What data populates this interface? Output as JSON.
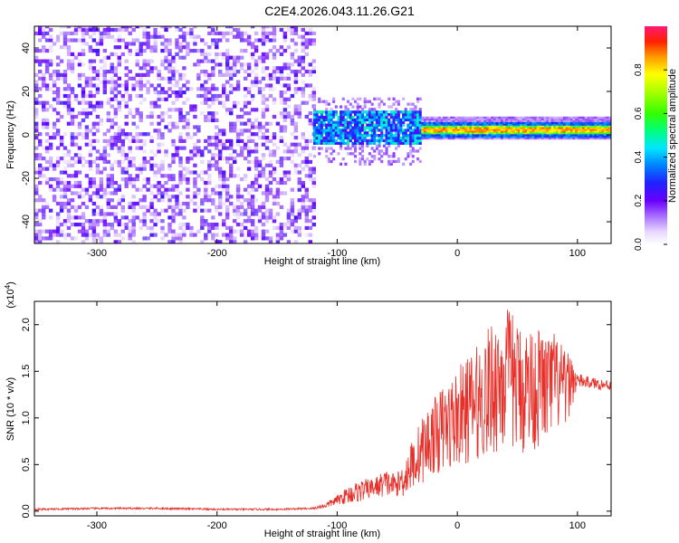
{
  "title": "C2E4.2026.043.11.26.G21",
  "chart_data": [
    {
      "type": "heatmap",
      "name": "spectrogram",
      "xlabel": "Height of straight line (km)",
      "ylabel": "Frequency (Hz)",
      "xlim": [
        -352,
        128
      ],
      "ylim": [
        -50,
        50
      ],
      "xticks": [
        -300,
        -200,
        -100,
        0,
        100
      ],
      "xtick_labels": [
        "-300",
        "-200",
        "-100",
        "0",
        "100"
      ],
      "yticks": [
        -40,
        -20,
        0,
        20,
        40
      ],
      "ytick_labels": [
        "-40",
        "-20",
        "0",
        "20",
        "40"
      ],
      "colorbar": {
        "label": "Normalized spectral amplitude",
        "range": [
          0,
          1
        ],
        "ticks": [
          0.0,
          0.2,
          0.4,
          0.6,
          0.8
        ],
        "tick_labels": [
          "0.0",
          "0.2",
          "0.4",
          "0.6",
          "0.8"
        ]
      },
      "regions": [
        {
          "description": "broadband noise",
          "x_range": [
            -352,
            -120
          ],
          "freq_range": [
            -50,
            50
          ],
          "amplitude": 0.15
        },
        {
          "description": "signal onset",
          "x_range": [
            -120,
            -30
          ],
          "freq_range": [
            -5,
            10
          ],
          "amplitude": 0.35
        },
        {
          "description": "narrow band",
          "x_range": [
            -30,
            128
          ],
          "freq_range": [
            0,
            5
          ],
          "center_freq": 2,
          "amplitude": 0.9
        }
      ]
    },
    {
      "type": "line",
      "name": "snr",
      "xlabel": "Height of straight line (km)",
      "ylabel": "SNR (10 * v/v)",
      "y_multiplier": "(x10",
      "y_multiplier_exp": "4",
      "y_multiplier_close": ")",
      "xlim": [
        -352,
        128
      ],
      "ylim": [
        -0.05,
        2.25
      ],
      "xticks": [
        -300,
        -200,
        -100,
        0,
        100
      ],
      "xtick_labels": [
        "-300",
        "-200",
        "-100",
        "0",
        "100"
      ],
      "yticks": [
        0.0,
        0.5,
        1.0,
        1.5,
        2.0
      ],
      "ytick_labels": [
        "0.0",
        "0.5",
        "1.0",
        "1.5",
        "2.0"
      ],
      "color": "#e8302a",
      "series": [
        {
          "name": "SNR",
          "x": [
            -352,
            -300,
            -250,
            -200,
            -150,
            -120,
            -110,
            -100,
            -90,
            -80,
            -70,
            -60,
            -50,
            -45,
            -40,
            -35,
            -30,
            -25,
            -20,
            -15,
            -10,
            -5,
            0,
            5,
            10,
            15,
            20,
            25,
            30,
            35,
            40,
            45,
            50,
            55,
            60,
            65,
            70,
            75,
            80,
            85,
            90,
            95,
            100,
            110,
            120,
            128
          ],
          "values": [
            0.02,
            0.03,
            0.03,
            0.02,
            0.02,
            0.03,
            0.06,
            0.12,
            0.18,
            0.22,
            0.25,
            0.3,
            0.28,
            0.35,
            0.45,
            0.55,
            0.65,
            0.72,
            0.8,
            0.85,
            0.9,
            0.95,
            1.0,
            1.05,
            1.1,
            1.15,
            1.2,
            1.25,
            1.35,
            1.4,
            1.45,
            1.4,
            1.35,
            1.3,
            1.35,
            1.3,
            1.35,
            1.3,
            1.4,
            1.35,
            1.3,
            1.4,
            1.4,
            1.38,
            1.36,
            1.35
          ],
          "spread": [
            0.01,
            0.01,
            0.01,
            0.01,
            0.01,
            0.01,
            0.03,
            0.05,
            0.1,
            0.12,
            0.1,
            0.15,
            0.12,
            0.2,
            0.25,
            0.3,
            0.35,
            0.4,
            0.4,
            0.45,
            0.5,
            0.5,
            0.55,
            0.55,
            0.6,
            0.6,
            0.65,
            0.7,
            0.75,
            0.8,
            0.8,
            0.75,
            0.7,
            0.7,
            0.7,
            0.65,
            0.65,
            0.6,
            0.55,
            0.5,
            0.4,
            0.3,
            0.08,
            0.06,
            0.06,
            0.06
          ]
        }
      ]
    }
  ]
}
